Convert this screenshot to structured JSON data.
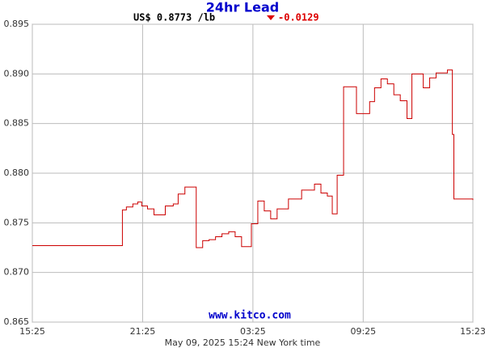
{
  "chart_data": {
    "type": "line",
    "step": true,
    "title": "24hr Lead",
    "price": "US$ 0.8773 /lb",
    "change": "-0.0129",
    "watermark": "www.kitco.com",
    "footer": "May 09, 2025 15:24 New York time",
    "x": [
      "15:25",
      "20:19",
      "20:32",
      "20:53",
      "21:09",
      "21:22",
      "21:41",
      "22:02",
      "22:39",
      "23:05",
      "23:21",
      "23:43",
      "00:20",
      "00:41",
      "01:02",
      "01:23",
      "01:44",
      "02:06",
      "02:27",
      "02:48",
      "03:20",
      "03:41",
      "04:02",
      "04:23",
      "04:44",
      "05:21",
      "06:04",
      "06:46",
      "07:07",
      "07:28",
      "07:44",
      "08:00",
      "08:21",
      "09:03",
      "09:46",
      "10:02",
      "10:23",
      "10:44",
      "11:05",
      "11:26",
      "11:48",
      "12:04",
      "12:41",
      "13:02",
      "13:23",
      "14:00",
      "14:16",
      "14:21",
      "15:23"
    ],
    "series": [
      {
        "color": "#cc0000",
        "values": [
          0.8727,
          0.8763,
          0.8766,
          0.8769,
          0.8771,
          0.8767,
          0.8764,
          0.8758,
          0.8767,
          0.8769,
          0.8779,
          0.8786,
          0.8725,
          0.8732,
          0.8733,
          0.8736,
          0.8739,
          0.8741,
          0.8736,
          0.8726,
          0.8749,
          0.8772,
          0.8762,
          0.8754,
          0.8764,
          0.8774,
          0.8783,
          0.8789,
          0.878,
          0.8777,
          0.8759,
          0.8798,
          0.8887,
          0.886,
          0.8872,
          0.8886,
          0.8895,
          0.889,
          0.8879,
          0.8873,
          0.8855,
          0.89,
          0.8886,
          0.8896,
          0.8901,
          0.8904,
          0.8839,
          0.8774,
          0.8773
        ]
      }
    ],
    "xlim": [
      "15:25",
      "15:23"
    ],
    "xticks": [
      "15:25",
      "21:25",
      "03:25",
      "09:25",
      "15:23"
    ],
    "ylim": [
      0.865,
      0.895
    ],
    "yticks": [
      0.865,
      {
        "value": 0.87,
        "label": "0.870"
      },
      0.875,
      {
        "value": 0.88,
        "label": "0.880"
      },
      0.885,
      {
        "value": 0.89,
        "label": "0.890"
      },
      0.895
    ],
    "grid": true
  }
}
